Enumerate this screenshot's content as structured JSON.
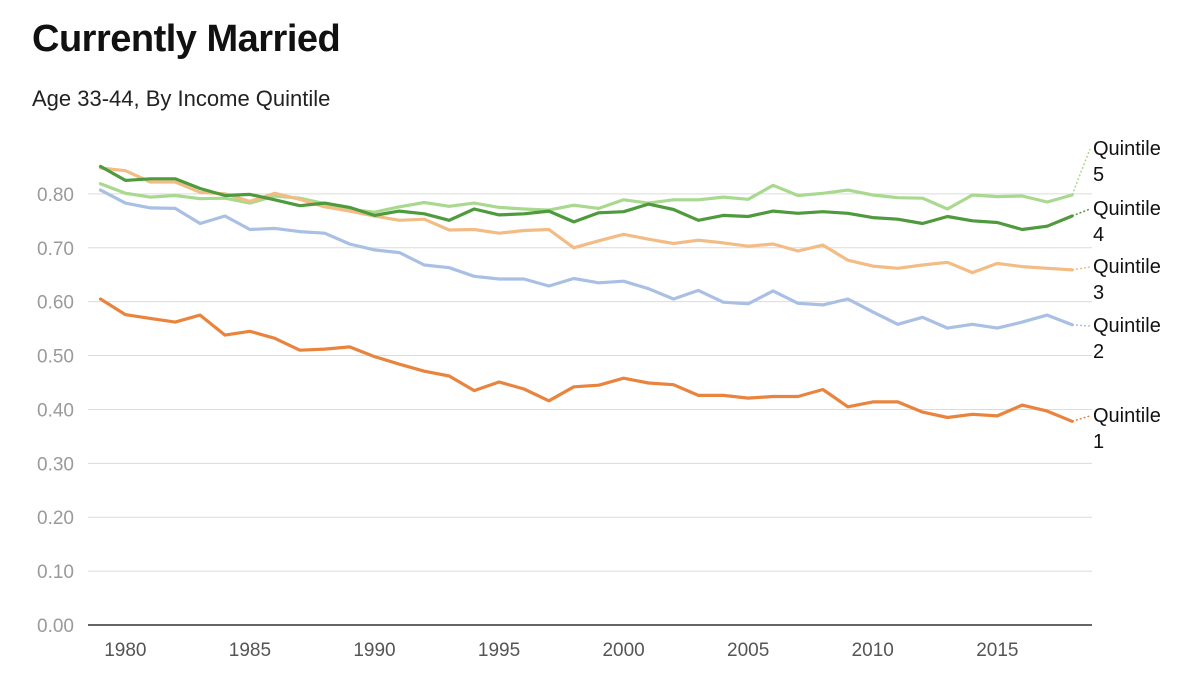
{
  "chart_data": {
    "type": "line",
    "title": "Currently Married",
    "subtitle": "Age 33-44, By Income Quintile",
    "xlabel": "",
    "ylabel": "",
    "xlim": [
      1978.5,
      2018.8
    ],
    "ylim": [
      0,
      0.9
    ],
    "x_ticks": [
      1980,
      1985,
      1990,
      1995,
      2000,
      2005,
      2010,
      2015
    ],
    "y_ticks": [
      "0.00",
      "0.10",
      "0.20",
      "0.30",
      "0.40",
      "0.50",
      "0.60",
      "0.70",
      "0.80"
    ],
    "grid": true,
    "x": [
      1979,
      1980,
      1981,
      1982,
      1983,
      1984,
      1985,
      1986,
      1987,
      1988,
      1989,
      1990,
      1991,
      1992,
      1993,
      1994,
      1995,
      1996,
      1997,
      1998,
      1999,
      2000,
      2001,
      2002,
      2003,
      2004,
      2005,
      2006,
      2007,
      2008,
      2009,
      2010,
      2011,
      2012,
      2013,
      2014,
      2015,
      2016,
      2017,
      2018
    ],
    "series": [
      {
        "name": "Quintile 1",
        "label_line1": "Quintile",
        "label_line2": "1",
        "color": "#e8843e",
        "values": [
          0.605,
          0.576,
          0.569,
          0.562,
          0.575,
          0.538,
          0.545,
          0.532,
          0.51,
          0.512,
          0.516,
          0.498,
          0.484,
          0.471,
          0.462,
          0.435,
          0.451,
          0.438,
          0.416,
          0.442,
          0.445,
          0.458,
          0.449,
          0.446,
          0.426,
          0.426,
          0.421,
          0.424,
          0.424,
          0.437,
          0.405,
          0.414,
          0.414,
          0.395,
          0.385,
          0.391,
          0.388,
          0.408,
          0.397,
          0.378
        ]
      },
      {
        "name": "Quintile 2",
        "label_line1": "Quintile",
        "label_line2": "2",
        "color": "#a9bfe3",
        "values": [
          0.807,
          0.783,
          0.774,
          0.773,
          0.745,
          0.759,
          0.734,
          0.736,
          0.73,
          0.727,
          0.707,
          0.696,
          0.691,
          0.668,
          0.663,
          0.647,
          0.642,
          0.642,
          0.629,
          0.643,
          0.635,
          0.638,
          0.624,
          0.605,
          0.621,
          0.599,
          0.596,
          0.62,
          0.597,
          0.594,
          0.605,
          0.581,
          0.558,
          0.571,
          0.551,
          0.558,
          0.551,
          0.562,
          0.575,
          0.557
        ]
      },
      {
        "name": "Quintile 3",
        "label_line1": "Quintile",
        "label_line2": "3",
        "color": "#f3bc85",
        "values": [
          0.848,
          0.843,
          0.822,
          0.822,
          0.803,
          0.8,
          0.786,
          0.801,
          0.79,
          0.776,
          0.768,
          0.759,
          0.751,
          0.753,
          0.733,
          0.734,
          0.727,
          0.732,
          0.734,
          0.7,
          0.713,
          0.725,
          0.716,
          0.708,
          0.714,
          0.709,
          0.703,
          0.707,
          0.694,
          0.705,
          0.677,
          0.666,
          0.662,
          0.668,
          0.673,
          0.654,
          0.671,
          0.665,
          0.662,
          0.659
        ]
      },
      {
        "name": "Quintile 4",
        "label_line1": "Quintile",
        "label_line2": "4",
        "color": "#4e9a3c",
        "values": [
          0.851,
          0.825,
          0.828,
          0.828,
          0.81,
          0.797,
          0.799,
          0.789,
          0.778,
          0.783,
          0.775,
          0.76,
          0.768,
          0.763,
          0.751,
          0.772,
          0.761,
          0.763,
          0.768,
          0.748,
          0.765,
          0.767,
          0.781,
          0.771,
          0.751,
          0.76,
          0.758,
          0.768,
          0.764,
          0.767,
          0.764,
          0.756,
          0.753,
          0.745,
          0.758,
          0.75,
          0.747,
          0.734,
          0.74,
          0.759
        ]
      },
      {
        "name": "Quintile 5",
        "label_line1": "Quintile",
        "label_line2": "5",
        "color": "#a8d98f",
        "values": [
          0.819,
          0.801,
          0.794,
          0.797,
          0.791,
          0.792,
          0.783,
          0.796,
          0.792,
          0.782,
          0.771,
          0.766,
          0.776,
          0.784,
          0.777,
          0.783,
          0.775,
          0.772,
          0.77,
          0.779,
          0.773,
          0.789,
          0.783,
          0.789,
          0.789,
          0.794,
          0.79,
          0.816,
          0.797,
          0.801,
          0.807,
          0.798,
          0.793,
          0.792,
          0.772,
          0.798,
          0.795,
          0.796,
          0.785,
          0.798
        ]
      }
    ]
  }
}
